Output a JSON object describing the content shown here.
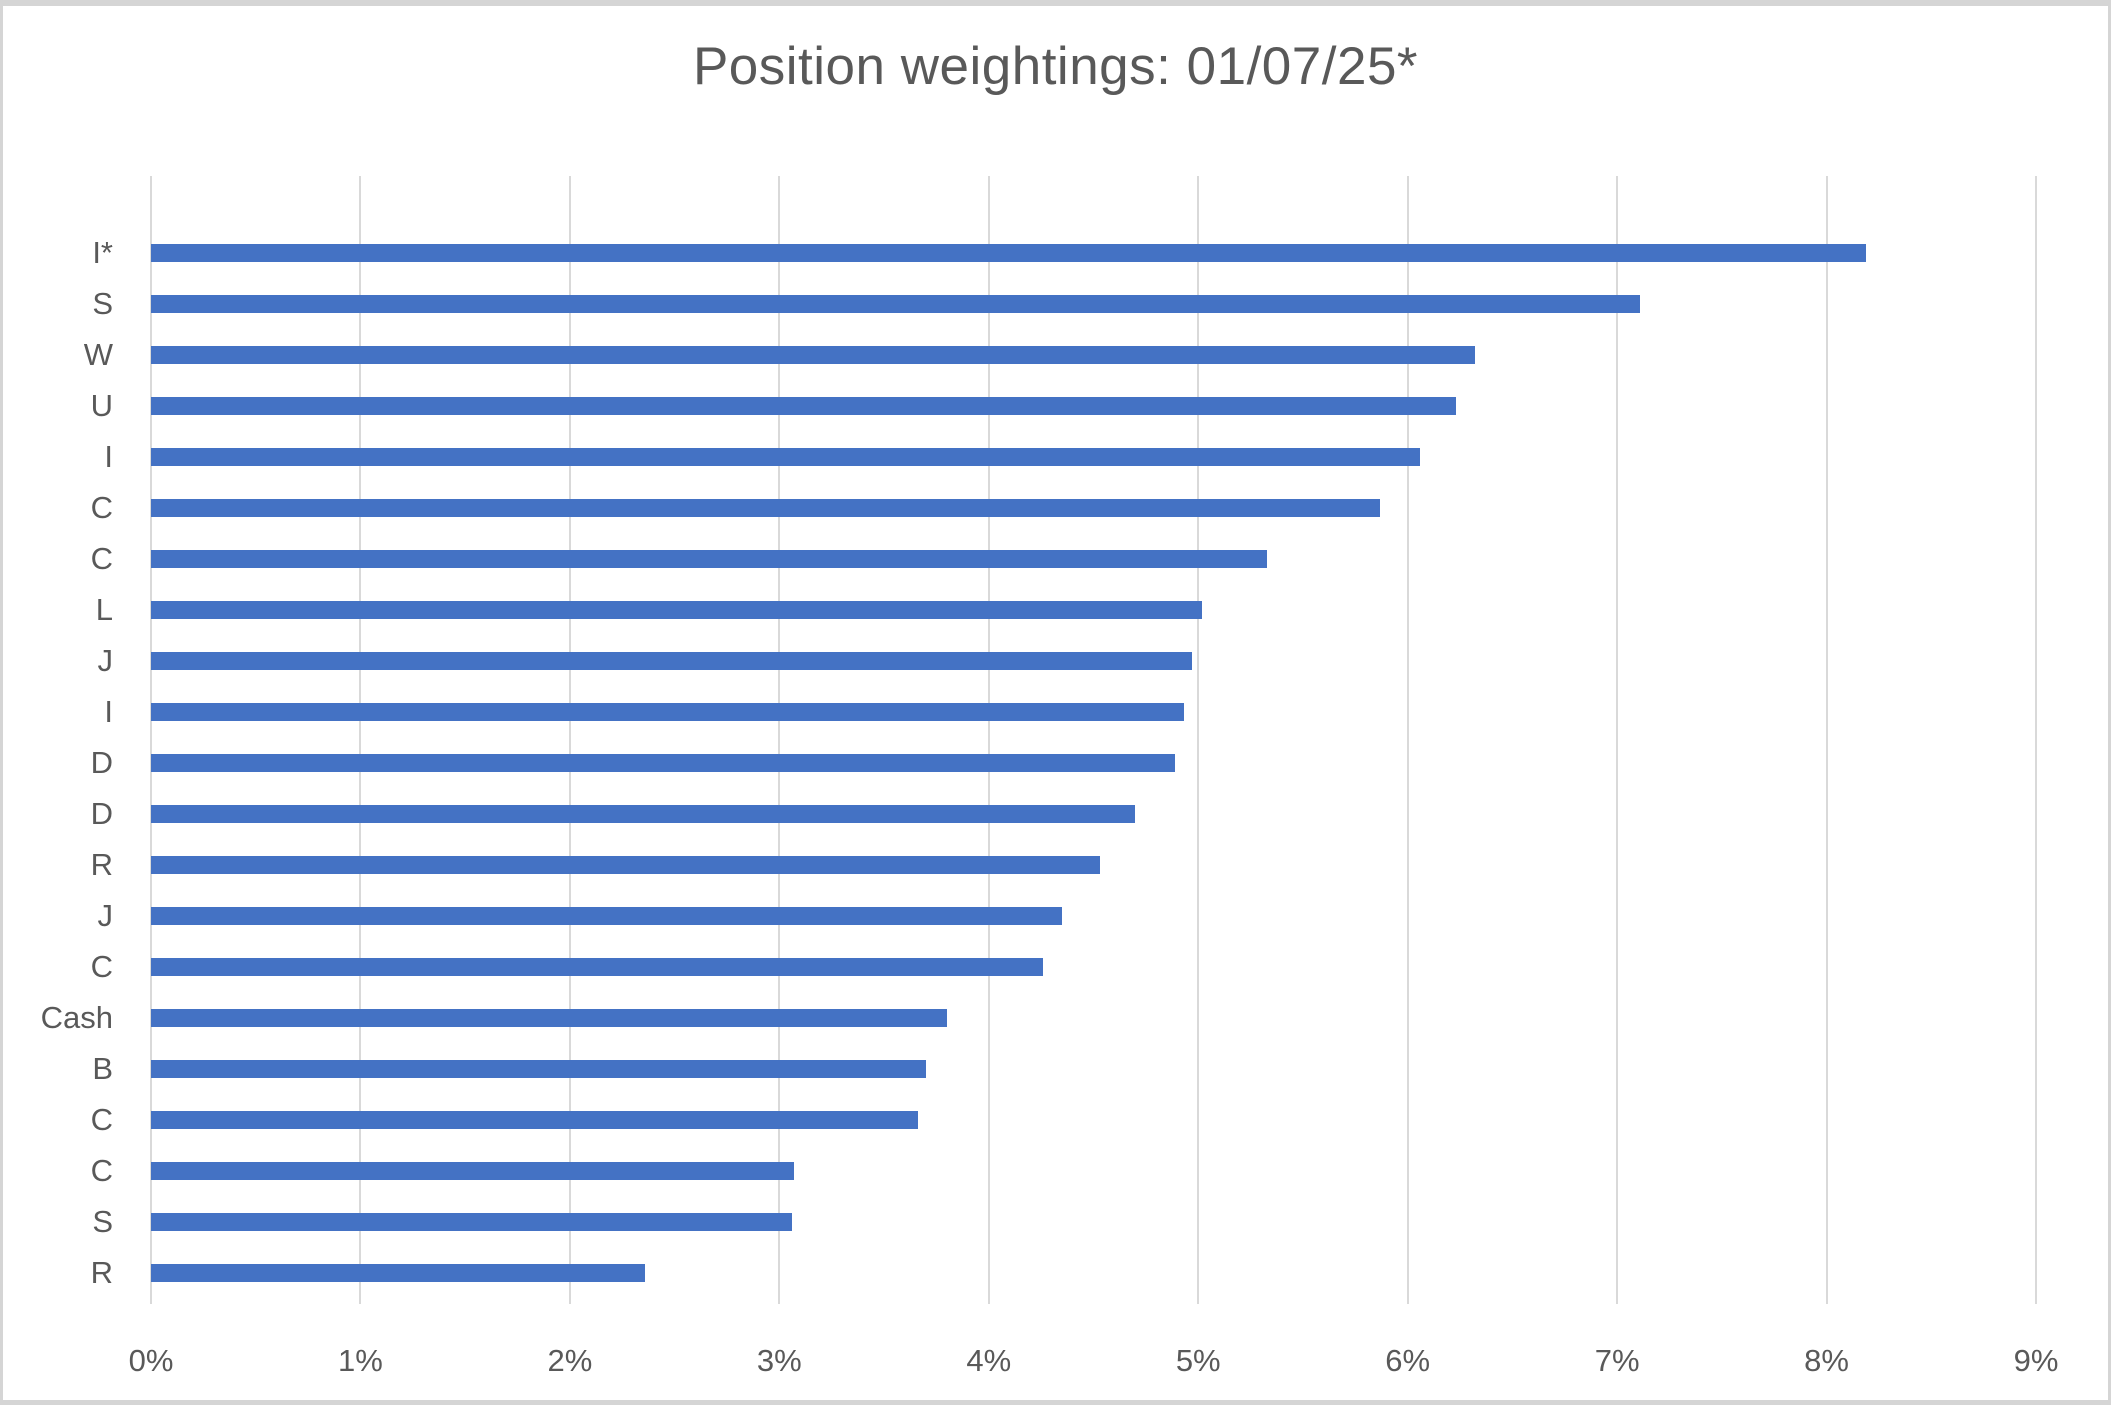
{
  "chart": {
    "title": "Position weightings: 01/07/25*"
  },
  "chart_data": {
    "type": "bar",
    "orientation": "horizontal",
    "title": "Position weightings: 01/07/25*",
    "categories": [
      "I*",
      "S",
      "W",
      "U",
      "I",
      "C",
      "C",
      "L",
      "J",
      "I",
      "D",
      "D",
      "R",
      "J",
      "C",
      "Cash",
      "B",
      "C",
      "C",
      "S",
      "R"
    ],
    "values": [
      8.19,
      7.11,
      6.32,
      6.23,
      6.06,
      5.87,
      5.33,
      5.02,
      4.97,
      4.93,
      4.89,
      4.7,
      4.53,
      4.35,
      4.26,
      3.8,
      3.7,
      3.66,
      3.07,
      3.06,
      2.36
    ],
    "x_ticks": [
      "0%",
      "1%",
      "2%",
      "3%",
      "4%",
      "5%",
      "6%",
      "7%",
      "8%",
      "9%"
    ],
    "xlabel": "",
    "ylabel": "",
    "xlim": [
      0,
      9
    ],
    "grid": "vertical",
    "legend": "none",
    "bar_color": "#4472C4",
    "gridline_color": "#D9D9D9",
    "text_color": "#595959"
  }
}
